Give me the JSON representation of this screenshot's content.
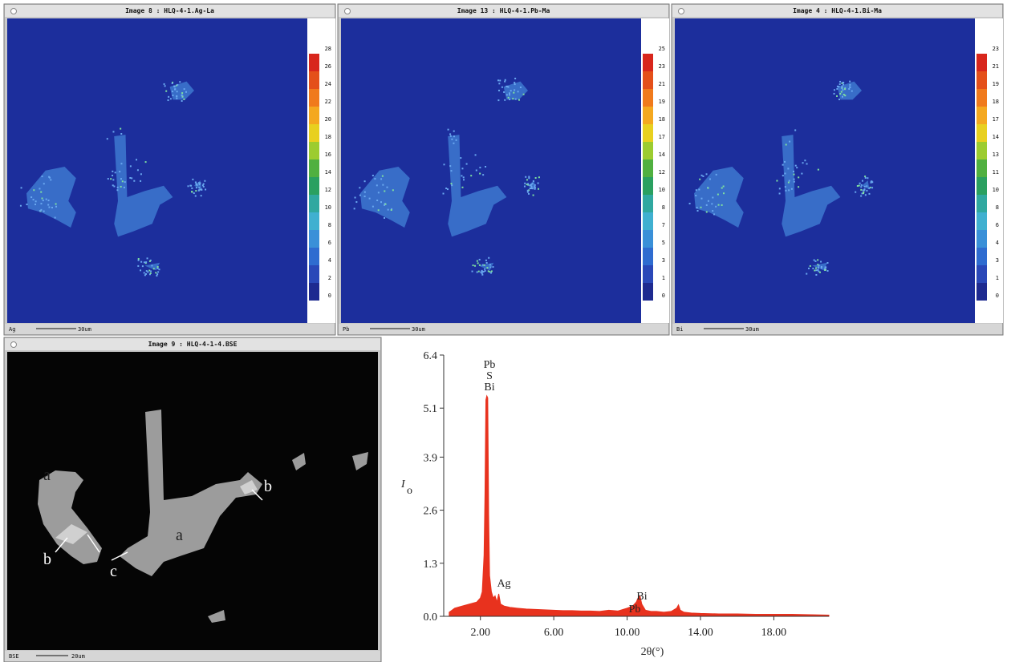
{
  "maps": [
    {
      "title": "Image 8 : HLQ-4-1.Ag-La",
      "element": "Ag",
      "scale": "30um",
      "colorbar": [
        28,
        26,
        24,
        22,
        20,
        18,
        16,
        14,
        12,
        10,
        8,
        6,
        4,
        2,
        0
      ]
    },
    {
      "title": "Image 13 : HLQ-4-1.Pb-Ma",
      "element": "Pb",
      "scale": "30um",
      "colorbar": [
        25,
        23,
        21,
        19,
        18,
        17,
        14,
        12,
        10,
        8,
        7,
        5,
        3,
        1,
        0
      ]
    },
    {
      "title": "Image 4 : HLQ-4-1.Bi-Ma",
      "element": "Bi",
      "scale": "30um",
      "colorbar": [
        23,
        21,
        19,
        18,
        17,
        14,
        13,
        11,
        10,
        8,
        6,
        4,
        3,
        1,
        0
      ]
    }
  ],
  "bse": {
    "title": "Image 9 : HLQ-4-1-4.BSE",
    "element": "BSE",
    "scale": "20um",
    "labels": [
      "a",
      "a",
      "b",
      "b",
      "c"
    ]
  },
  "chart_data": {
    "type": "area",
    "ylabel": "I",
    "ylabel_sub": "o",
    "xlabel": "2θ(°)",
    "color": "#e8321e",
    "x": [
      0.3,
      0.6,
      1.0,
      1.4,
      1.8,
      2.0,
      2.1,
      2.2,
      2.25,
      2.3,
      2.35,
      2.4,
      2.45,
      2.5,
      2.6,
      2.7,
      2.8,
      2.9,
      3.0,
      3.1,
      3.3,
      3.6,
      4.0,
      4.5,
      5.0,
      5.5,
      6.0,
      6.5,
      7.0,
      7.5,
      8.0,
      8.5,
      9.0,
      9.5,
      10.0,
      10.3,
      10.5,
      10.6,
      10.7,
      10.8,
      11.0,
      11.3,
      11.6,
      12.0,
      12.4,
      12.7,
      12.8,
      12.9,
      13.1,
      13.5,
      14.0,
      15.0,
      16.0,
      17.0,
      18.0,
      19.0,
      20.0,
      21.0
    ],
    "values": [
      0.1,
      0.2,
      0.25,
      0.3,
      0.35,
      0.45,
      0.6,
      1.5,
      3.0,
      5.3,
      5.4,
      5.35,
      2.5,
      1.0,
      0.6,
      0.45,
      0.5,
      0.35,
      0.55,
      0.3,
      0.25,
      0.22,
      0.2,
      0.18,
      0.17,
      0.16,
      0.15,
      0.14,
      0.14,
      0.13,
      0.13,
      0.12,
      0.15,
      0.13,
      0.2,
      0.25,
      0.35,
      0.45,
      0.5,
      0.3,
      0.15,
      0.12,
      0.12,
      0.1,
      0.12,
      0.2,
      0.28,
      0.15,
      0.1,
      0.08,
      0.07,
      0.06,
      0.06,
      0.05,
      0.05,
      0.05,
      0.04,
      0.03
    ],
    "xlim": [
      0,
      21
    ],
    "xticks": [
      {
        "value": 2,
        "label": "2.00"
      },
      {
        "value": 6,
        "label": "6.00"
      },
      {
        "value": 10,
        "label": "10.00"
      },
      {
        "value": 14,
        "label": "14.00"
      },
      {
        "value": 18,
        "label": "18.00"
      }
    ],
    "ylim": [
      0,
      6.4
    ],
    "yticks": [
      {
        "value": 0,
        "label": "0.0"
      },
      1.3,
      2.6,
      3.9,
      5.1,
      6.4
    ],
    "annotations": [
      "Pb",
      "S",
      "Bi",
      "Ag",
      "Bi",
      "Pb"
    ]
  }
}
